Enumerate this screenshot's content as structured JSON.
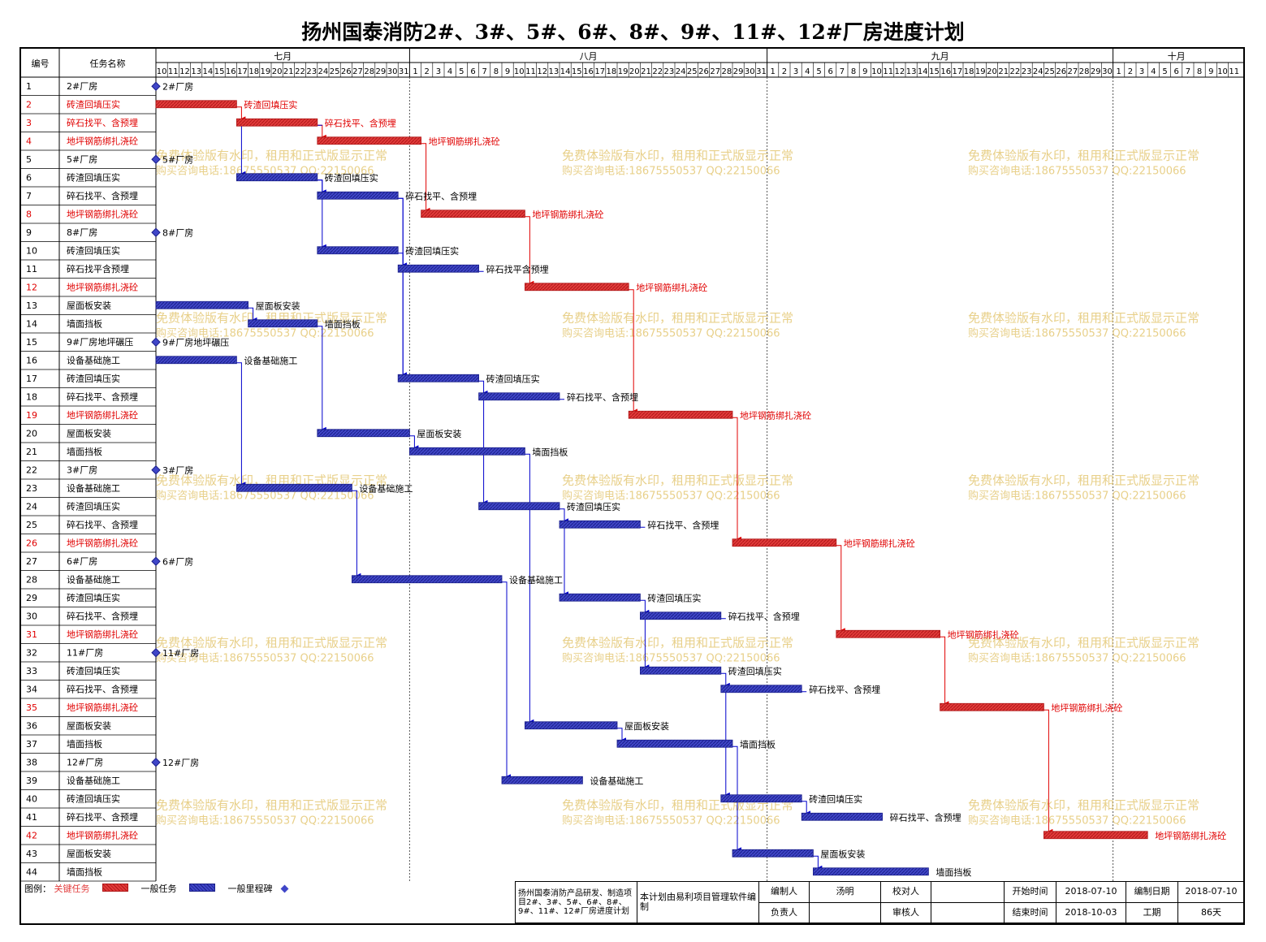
{
  "title": "扬州国泰消防2#、3#、5#、6#、8#、9#、11#、12#厂房进度计划",
  "headers": {
    "id": "编号",
    "name": "任务名称"
  },
  "months": [
    {
      "label": "七月",
      "start": "2018-07-10",
      "days": 22
    },
    {
      "label": "八月",
      "start": "2018-08-01",
      "days": 31
    },
    {
      "label": "九月",
      "start": "2018-09-01",
      "days": 30
    },
    {
      "label": "十月",
      "start": "2018-10-01",
      "days": 11
    }
  ],
  "watermark": {
    "line1": "免费体验版有水印，租用和正式版显示正常",
    "line2": "购买咨询电话:18675550537 QQ:22150066"
  },
  "colors": {
    "critical": "#e23b3b",
    "normal": "#4046c8",
    "milestone": "#4046c8",
    "arrow_red": "#e00000",
    "arrow_blue": "#0000cc"
  },
  "chart_data": {
    "type": "gantt",
    "start_date": "2018-07-10",
    "end_date": "2018-10-03",
    "tasks": [
      {
        "id": "1",
        "name": "2#厂房",
        "type": "milestone",
        "start": "2018-07-10",
        "end": "2018-07-10",
        "label": "2#厂房"
      },
      {
        "id": "2",
        "name": "砖渣回填压实",
        "type": "critical",
        "start": "2018-07-10",
        "end": "2018-07-16",
        "label": "砖渣回填压实"
      },
      {
        "id": "3",
        "name": "碎石找平、含预埋",
        "type": "critical",
        "start": "2018-07-17",
        "end": "2018-07-23",
        "label": "碎石找平、含预埋"
      },
      {
        "id": "4",
        "name": "地坪钢筋绑扎浇砼",
        "type": "critical",
        "start": "2018-07-24",
        "end": "2018-08-01",
        "label": "地坪钢筋绑扎浇砼"
      },
      {
        "id": "5",
        "name": "5#厂房",
        "type": "milestone",
        "start": "2018-07-10",
        "end": "2018-07-10",
        "label": "5#厂房"
      },
      {
        "id": "6",
        "name": "砖渣回填压实",
        "type": "normal",
        "start": "2018-07-17",
        "end": "2018-07-23",
        "label": "砖渣回填压实"
      },
      {
        "id": "7",
        "name": "碎石找平、含预埋",
        "type": "normal",
        "start": "2018-07-24",
        "end": "2018-07-30",
        "label": "碎石找平、含预埋"
      },
      {
        "id": "8",
        "name": "地坪钢筋绑扎浇砼",
        "type": "critical",
        "start": "2018-08-02",
        "end": "2018-08-10",
        "label": "地坪钢筋绑扎浇砼"
      },
      {
        "id": "9",
        "name": "8#厂房",
        "type": "milestone",
        "start": "2018-07-10",
        "end": "2018-07-10",
        "label": "8#厂房"
      },
      {
        "id": "10",
        "name": "砖渣回填压实",
        "type": "normal",
        "start": "2018-07-24",
        "end": "2018-07-30",
        "label": "砖渣回填压实"
      },
      {
        "id": "11",
        "name": "碎石找平含预埋",
        "type": "normal",
        "start": "2018-07-31",
        "end": "2018-08-06",
        "label": "碎石找平含预埋"
      },
      {
        "id": "12",
        "name": "地坪钢筋绑扎浇砼",
        "type": "critical",
        "start": "2018-08-11",
        "end": "2018-08-19",
        "label": "地坪钢筋绑扎浇砼"
      },
      {
        "id": "13",
        "name": "屋面板安装",
        "type": "normal",
        "start": "2018-07-10",
        "end": "2018-07-17",
        "label": "屋面板安装"
      },
      {
        "id": "14",
        "name": "墙面挡板",
        "type": "normal",
        "start": "2018-07-18",
        "end": "2018-07-23",
        "label": "墙面挡板"
      },
      {
        "id": "15",
        "name": "9#厂房地坪碾压",
        "type": "milestone",
        "start": "2018-07-10",
        "end": "2018-07-10",
        "label": "9#厂房地坪碾压"
      },
      {
        "id": "16",
        "name": "设备基础施工",
        "type": "normal",
        "start": "2018-07-10",
        "end": "2018-07-16",
        "label": "设备基础施工"
      },
      {
        "id": "17",
        "name": "砖渣回填压实",
        "type": "normal",
        "start": "2018-07-31",
        "end": "2018-08-06",
        "label": "砖渣回填压实"
      },
      {
        "id": "18",
        "name": "碎石找平、含预埋",
        "type": "normal",
        "start": "2018-08-07",
        "end": "2018-08-13",
        "label": "碎石找平、含预埋"
      },
      {
        "id": "19",
        "name": "地坪钢筋绑扎浇砼",
        "type": "critical",
        "start": "2018-08-20",
        "end": "2018-08-28",
        "label": "地坪钢筋绑扎浇砼"
      },
      {
        "id": "20",
        "name": "屋面板安装",
        "type": "normal",
        "start": "2018-07-24",
        "end": "2018-07-31",
        "label": "屋面板安装"
      },
      {
        "id": "21",
        "name": "墙面挡板",
        "type": "normal",
        "start": "2018-08-01",
        "end": "2018-08-10",
        "label": "墙面挡板"
      },
      {
        "id": "22",
        "name": "3#厂房",
        "type": "milestone",
        "start": "2018-07-10",
        "end": "2018-07-10",
        "label": "3#厂房"
      },
      {
        "id": "23",
        "name": "设备基础施工",
        "type": "normal",
        "start": "2018-07-17",
        "end": "2018-07-26",
        "label": "设备基础施工"
      },
      {
        "id": "24",
        "name": "砖渣回填压实",
        "type": "normal",
        "start": "2018-08-07",
        "end": "2018-08-13",
        "label": "砖渣回填压实"
      },
      {
        "id": "25",
        "name": "碎石找平、含预埋",
        "type": "normal",
        "start": "2018-08-14",
        "end": "2018-08-20",
        "label": "碎石找平、含预埋"
      },
      {
        "id": "26",
        "name": "地坪钢筋绑扎浇砼",
        "type": "critical",
        "start": "2018-08-29",
        "end": "2018-09-06",
        "label": "地坪钢筋绑扎浇砼"
      },
      {
        "id": "27",
        "name": "6#厂房",
        "type": "milestone",
        "start": "2018-07-10",
        "end": "2018-07-10",
        "label": "6#厂房"
      },
      {
        "id": "28",
        "name": "设备基础施工",
        "type": "normal",
        "start": "2018-07-27",
        "end": "2018-08-08",
        "label": "设备基础施工"
      },
      {
        "id": "29",
        "name": "砖渣回填压实",
        "type": "normal",
        "start": "2018-08-14",
        "end": "2018-08-20",
        "label": "砖渣回填压实"
      },
      {
        "id": "30",
        "name": "碎石找平、含预埋",
        "type": "normal",
        "start": "2018-08-21",
        "end": "2018-08-27",
        "label": "碎石找平、含预埋"
      },
      {
        "id": "31",
        "name": "地坪钢筋绑扎浇砼",
        "type": "critical",
        "start": "2018-09-07",
        "end": "2018-09-15",
        "label": "地坪钢筋绑扎浇砼"
      },
      {
        "id": "32",
        "name": "11#厂房",
        "type": "milestone",
        "start": "2018-07-10",
        "end": "2018-07-10",
        "label": "11#厂房"
      },
      {
        "id": "33",
        "name": "砖渣回填压实",
        "type": "normal",
        "start": "2018-08-21",
        "end": "2018-08-27",
        "label": "砖渣回填压实"
      },
      {
        "id": "34",
        "name": "碎石找平、含预埋",
        "type": "normal",
        "start": "2018-08-28",
        "end": "2018-09-03",
        "label": "碎石找平、含预埋"
      },
      {
        "id": "35",
        "name": "地坪钢筋绑扎浇砼",
        "type": "critical",
        "start": "2018-09-16",
        "end": "2018-09-24",
        "label": "地坪钢筋绑扎浇砼"
      },
      {
        "id": "36",
        "name": "屋面板安装",
        "type": "normal",
        "start": "2018-08-11",
        "end": "2018-08-18",
        "label": "屋面板安装"
      },
      {
        "id": "37",
        "name": "墙面挡板",
        "type": "normal",
        "start": "2018-08-19",
        "end": "2018-08-28",
        "label": "墙面挡板"
      },
      {
        "id": "38",
        "name": "12#厂房",
        "type": "milestone",
        "start": "2018-07-10",
        "end": "2018-07-10",
        "label": "12#厂房"
      },
      {
        "id": "39",
        "name": "设备基础施工",
        "type": "normal",
        "start": "2018-08-09",
        "end": "2018-08-15",
        "label": "设备基础施工"
      },
      {
        "id": "40",
        "name": "砖渣回填压实",
        "type": "normal",
        "start": "2018-08-28",
        "end": "2018-09-03",
        "label": "砖渣回填压实"
      },
      {
        "id": "41",
        "name": "碎石找平、含预埋",
        "type": "normal",
        "start": "2018-09-04",
        "end": "2018-09-10",
        "label": "碎石找平、含预埋"
      },
      {
        "id": "42",
        "name": "地坪钢筋绑扎浇砼",
        "type": "critical",
        "start": "2018-09-25",
        "end": "2018-10-03",
        "label": "地坪钢筋绑扎浇砼"
      },
      {
        "id": "43",
        "name": "屋面板安装",
        "type": "normal",
        "start": "2018-08-29",
        "end": "2018-09-04",
        "label": "屋面板安装"
      },
      {
        "id": "44",
        "name": "墙面挡板",
        "type": "normal",
        "start": "2018-09-05",
        "end": "2018-09-14",
        "label": "墙面挡板"
      }
    ],
    "links": [
      [
        "2",
        "3"
      ],
      [
        "3",
        "4"
      ],
      [
        "4",
        "8"
      ],
      [
        "8",
        "12"
      ],
      [
        "12",
        "19"
      ],
      [
        "19",
        "26"
      ],
      [
        "26",
        "31"
      ],
      [
        "31",
        "35"
      ],
      [
        "35",
        "42"
      ],
      [
        "3",
        "6"
      ],
      [
        "6",
        "7"
      ],
      [
        "7",
        "11"
      ],
      [
        "6",
        "10"
      ],
      [
        "10",
        "11"
      ],
      [
        "11",
        "17"
      ],
      [
        "7",
        "17"
      ],
      [
        "17",
        "18"
      ],
      [
        "18",
        "24"
      ],
      [
        "24",
        "25"
      ],
      [
        "25",
        "29"
      ],
      [
        "29",
        "30"
      ],
      [
        "30",
        "33"
      ],
      [
        "33",
        "34"
      ],
      [
        "34",
        "40"
      ],
      [
        "40",
        "41"
      ],
      [
        "13",
        "14"
      ],
      [
        "14",
        "20"
      ],
      [
        "20",
        "21"
      ],
      [
        "21",
        "36"
      ],
      [
        "36",
        "37"
      ],
      [
        "37",
        "43"
      ],
      [
        "43",
        "44"
      ],
      [
        "16",
        "23"
      ],
      [
        "23",
        "28"
      ],
      [
        "28",
        "39"
      ]
    ]
  },
  "legend": {
    "title": "图例：",
    "critical": "关键任务",
    "normal": "一般任务",
    "milestone": "一般里程碑"
  },
  "footer": {
    "project": "扬州国泰消防产品研发、制造项目2#、3#、5#、6#、8#、9#、11#、12#厂房进度计划",
    "software": "本计划由易利项目管理软件编制",
    "editor_label": "编制人",
    "editor": "汤明",
    "checker_label": "校对人",
    "checker": "",
    "manager_label": "负责人",
    "manager": "",
    "reviewer_label": "审核人",
    "reviewer": "",
    "start_label": "开始时间",
    "start": "2018-07-10",
    "end_label": "结束时间",
    "end": "2018-10-03",
    "date_label": "编制日期",
    "date": "2018-07-10",
    "duration_label": "工期",
    "duration": "86天"
  }
}
